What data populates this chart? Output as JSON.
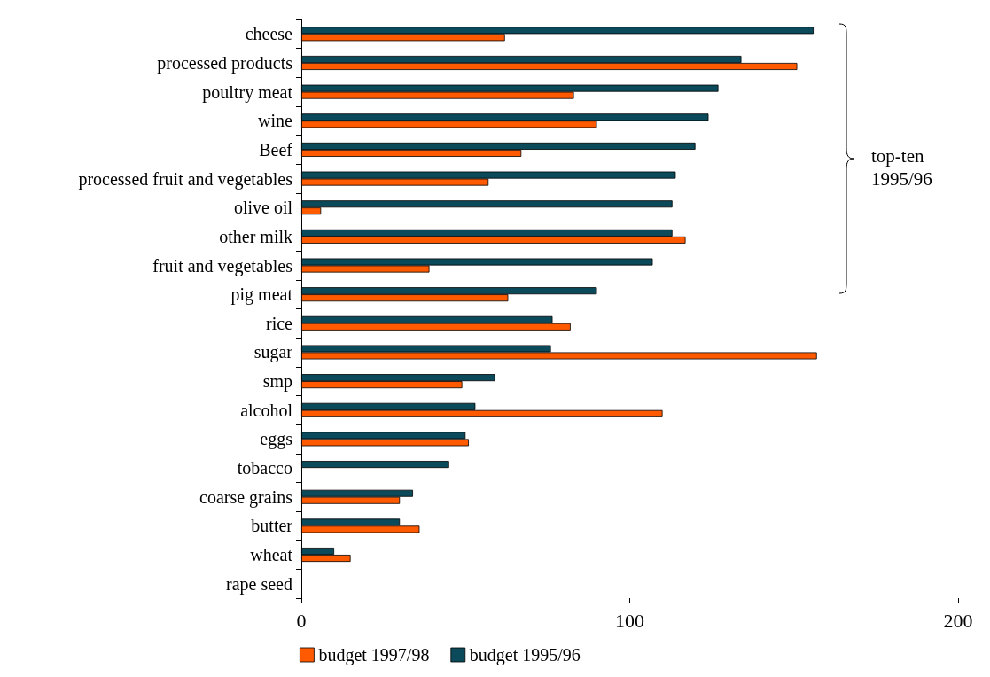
{
  "chart_data": {
    "type": "bar",
    "orientation": "horizontal",
    "categories": [
      "cheese",
      "processed products",
      "poultry meat",
      "wine",
      "Beef",
      "processed fruit and vegetables",
      "olive oil",
      "other milk",
      "fruit and vegetables",
      "pig meat",
      "rice",
      "sugar",
      "smp",
      "alcohol",
      "eggs",
      "tobacco",
      "coarse grains",
      "butter",
      "wheat",
      "rape seed"
    ],
    "series": [
      {
        "name": "budget 1997/98",
        "color": "#ff5a00",
        "values": [
          62,
          151,
          83,
          90,
          67,
          57,
          6,
          117,
          39,
          63,
          82,
          157,
          49,
          110,
          51,
          null,
          30,
          36,
          15,
          null
        ]
      },
      {
        "name": "budget 1995/96",
        "color": "#0b4a5a",
        "values": [
          156,
          134,
          127,
          124,
          120,
          114,
          113,
          113,
          107,
          90,
          76.5,
          76,
          59,
          53,
          50,
          45,
          34,
          30,
          10,
          null
        ]
      }
    ],
    "xlim": [
      0,
      200
    ],
    "xticks": [
      0,
      100,
      200
    ],
    "grid": false,
    "legend": "bottom left",
    "annotations": [
      "top-ten\n1995/96"
    ]
  }
}
